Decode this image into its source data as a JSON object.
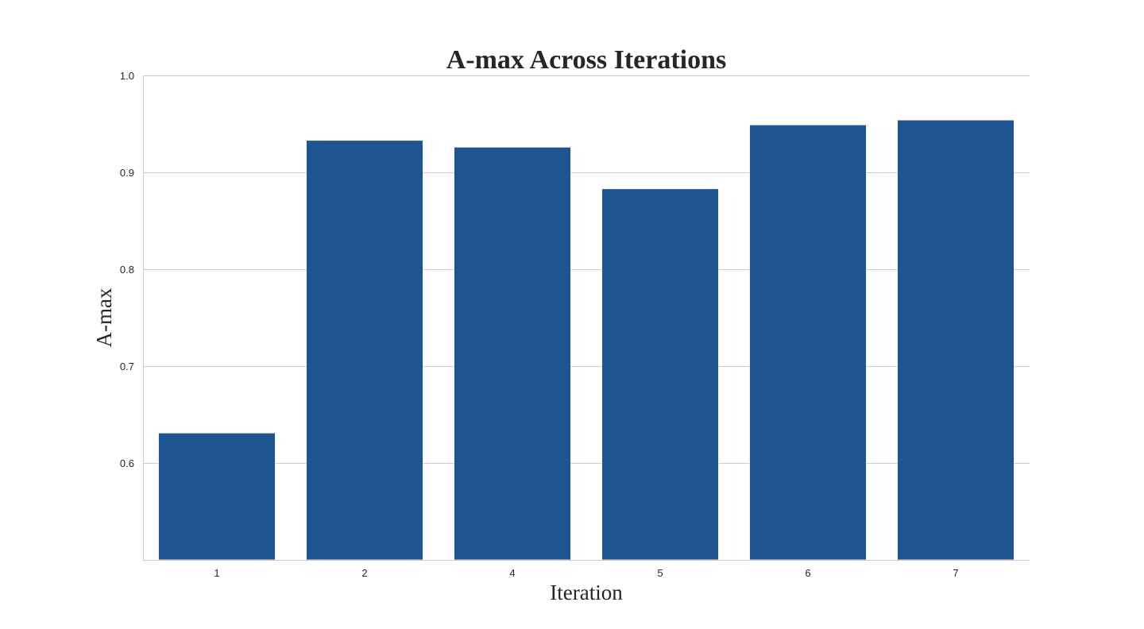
{
  "chart_data": {
    "type": "bar",
    "title": "A-max Across Iterations",
    "xlabel": "Iteration",
    "ylabel": "A-max",
    "categories": [
      "1",
      "2",
      "4",
      "5",
      "6",
      "7"
    ],
    "values": [
      0.631,
      0.933,
      0.926,
      0.883,
      0.949,
      0.954
    ],
    "ylim": [
      0.5,
      1.0
    ],
    "yticks": [
      "0.6",
      "0.7",
      "0.8",
      "0.9",
      "1.0"
    ],
    "grid": true,
    "bar_color": "#1f5591"
  }
}
